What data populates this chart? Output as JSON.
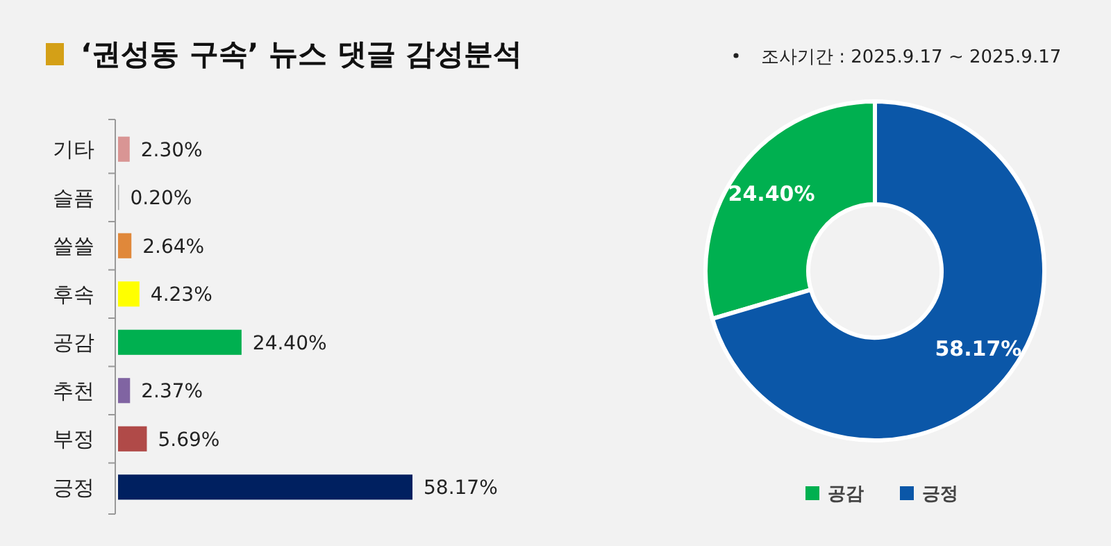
{
  "chart_data": [
    {
      "type": "bar",
      "title": "‘권성동 구속’ 뉴스 댓글 감성분석",
      "orientation": "horizontal",
      "categories": [
        "기타",
        "슬픔",
        "쓸쓸",
        "후속",
        "공감",
        "추천",
        "부정",
        "긍정"
      ],
      "values": [
        2.3,
        0.2,
        2.64,
        4.23,
        24.4,
        2.37,
        5.69,
        58.17
      ],
      "colors": [
        "#d99594",
        "#a6a6a6",
        "#e0883a",
        "#ffff00",
        "#00b050",
        "#8064a2",
        "#b04a48",
        "#002060"
      ],
      "value_labels": [
        "2.30%",
        "0.20%",
        "2.64%",
        "4.23%",
        "24.40%",
        "2.37%",
        "5.69%",
        "58.17%"
      ]
    },
    {
      "type": "donut",
      "subtitle": "조사기간 : 2025.9.17 ~ 2025.9.17",
      "categories": [
        "공감",
        "긍정"
      ],
      "values": [
        24.4,
        58.17
      ],
      "colors": [
        "#00b050",
        "#0b57a8"
      ],
      "value_labels": [
        "24.40%",
        "58.17%"
      ],
      "legend": "bottom"
    }
  ]
}
